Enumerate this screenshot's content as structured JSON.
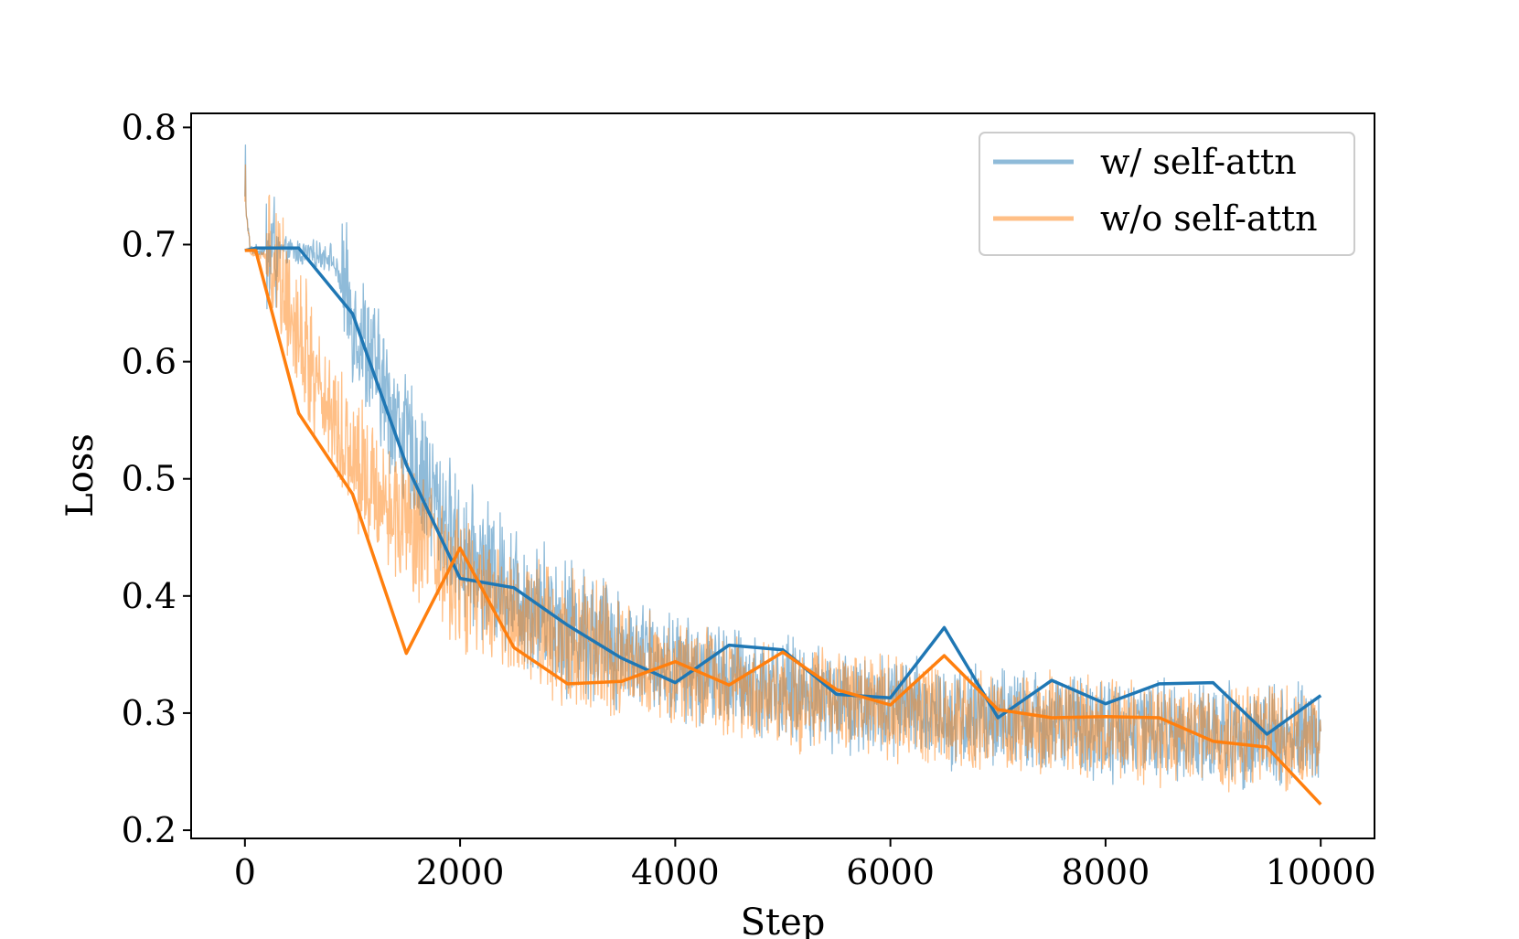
{
  "chart_data": {
    "type": "line",
    "xlabel": "Step",
    "ylabel": "Loss",
    "xlim": [
      -500,
      10500
    ],
    "ylim": [
      0.193,
      0.812
    ],
    "xticks": [
      0,
      2000,
      4000,
      6000,
      8000,
      10000
    ],
    "xtick_labels": [
      "0",
      "2000",
      "4000",
      "6000",
      "8000",
      "10000"
    ],
    "yticks": [
      0.2,
      0.3,
      0.4,
      0.5,
      0.6,
      0.7,
      0.8
    ],
    "ytick_labels": [
      "0.2",
      "0.3",
      "0.4",
      "0.5",
      "0.6",
      "0.7",
      "0.8"
    ],
    "grid": false,
    "legend_position": "top-right",
    "series": [
      {
        "name": "w/ self-attn",
        "color": "#1f77b4",
        "raw_opacity": 0.5,
        "x": [
          0,
          100,
          500,
          1000,
          1500,
          2000,
          2500,
          3000,
          3500,
          4000,
          4500,
          5000,
          5500,
          6000,
          6500,
          7000,
          7500,
          8000,
          8500,
          9000,
          9500,
          10000
        ],
        "y": [
          0.695,
          0.697,
          0.697,
          0.641,
          0.512,
          0.415,
          0.407,
          0.375,
          0.347,
          0.326,
          0.358,
          0.354,
          0.316,
          0.313,
          0.373,
          0.296,
          0.328,
          0.308,
          0.325,
          0.326,
          0.282,
          0.315
        ],
        "noise_trend_x": [
          0,
          50,
          300,
          800,
          1000,
          1500,
          2000,
          2500,
          3000,
          4000,
          5000,
          6000,
          7000,
          8000,
          9000,
          10000
        ],
        "noise_trend_y": [
          0.74,
          0.695,
          0.695,
          0.69,
          0.64,
          0.53,
          0.44,
          0.405,
          0.375,
          0.34,
          0.32,
          0.305,
          0.295,
          0.287,
          0.282,
          0.28
        ]
      },
      {
        "name": "w/o self-attn",
        "color": "#ff7f0e",
        "raw_opacity": 0.5,
        "x": [
          0,
          100,
          500,
          1000,
          1500,
          2000,
          2500,
          3000,
          3500,
          4000,
          4500,
          5000,
          5500,
          6000,
          6500,
          7000,
          7500,
          8000,
          8500,
          9000,
          9500,
          10000
        ],
        "y": [
          0.695,
          0.695,
          0.556,
          0.487,
          0.351,
          0.441,
          0.356,
          0.325,
          0.327,
          0.344,
          0.324,
          0.352,
          0.32,
          0.307,
          0.349,
          0.303,
          0.296,
          0.297,
          0.296,
          0.276,
          0.271,
          0.222
        ],
        "noise_trend_x": [
          0,
          50,
          300,
          600,
          1000,
          1500,
          2000,
          2500,
          3000,
          4000,
          5000,
          6000,
          7000,
          8000,
          9000,
          10000
        ],
        "noise_trend_y": [
          0.74,
          0.695,
          0.685,
          0.6,
          0.52,
          0.46,
          0.41,
          0.385,
          0.365,
          0.335,
          0.315,
          0.303,
          0.293,
          0.286,
          0.281,
          0.278
        ]
      }
    ]
  }
}
